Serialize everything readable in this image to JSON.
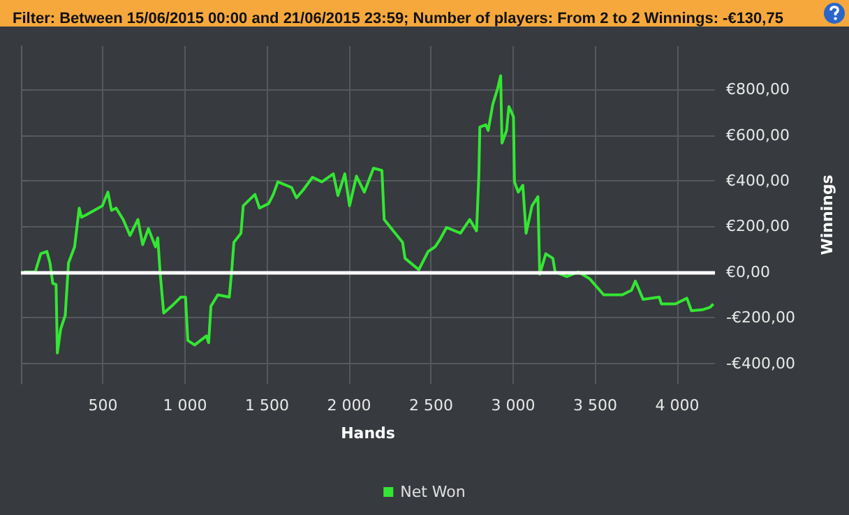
{
  "chart_data": {
    "type": "line",
    "title": "Filter: Between 15/06/2015 00:00 and 21/06/2015 23:59; Number of players: From 2 to 2 Winnings: -€130,75",
    "xlabel": "Hands",
    "ylabel": "Winnings",
    "x": [
      17,
      87,
      121,
      158,
      177,
      194,
      214,
      222,
      242,
      270,
      290,
      327,
      355,
      369,
      397,
      496,
      530,
      552,
      580,
      623,
      665,
      713,
      742,
      777,
      820,
      834,
      848,
      870,
      918,
      975,
      1003,
      1017,
      1059,
      1130,
      1144,
      1158,
      1200,
      1270,
      1284,
      1298,
      1341,
      1355,
      1426,
      1454,
      1510,
      1538,
      1566,
      1650,
      1679,
      1721,
      1777,
      1834,
      1904,
      1932,
      1974,
      2003,
      2045,
      2093,
      2149,
      2200,
      2214,
      2270,
      2326,
      2341,
      2425,
      2482,
      2524,
      2552,
      2594,
      2679,
      2735,
      2777,
      2791,
      2797,
      2833,
      2848,
      2876,
      2904,
      2924,
      2932,
      2960,
      2974,
      3002,
      3008,
      3031,
      3059,
      3079,
      3115,
      3151,
      3162,
      3199,
      3242,
      3256,
      3327,
      3397,
      3467,
      3552,
      3665,
      3721,
      3745,
      3792,
      3890,
      3904,
      3989,
      4059,
      4087,
      4157,
      4200,
      4220
    ],
    "series": [
      {
        "name": "Net Won",
        "color": "#33e633",
        "values": [
          0,
          0,
          80,
          90,
          40,
          -50,
          -55,
          -355,
          -250,
          -190,
          40,
          110,
          280,
          240,
          250,
          290,
          350,
          270,
          280,
          230,
          160,
          230,
          120,
          190,
          110,
          150,
          0,
          -180,
          -150,
          -110,
          -110,
          -300,
          -320,
          -280,
          -310,
          -150,
          -100,
          -110,
          0,
          130,
          170,
          290,
          340,
          280,
          300,
          340,
          395,
          370,
          325,
          360,
          415,
          395,
          430,
          335,
          430,
          290,
          420,
          350,
          455,
          445,
          230,
          180,
          130,
          60,
          10,
          90,
          110,
          140,
          195,
          170,
          230,
          180,
          425,
          635,
          645,
          620,
          735,
          800,
          860,
          565,
          620,
          725,
          680,
          395,
          350,
          380,
          170,
          290,
          330,
          -10,
          80,
          60,
          0,
          -20,
          0,
          -30,
          -100,
          -100,
          -80,
          -40,
          -120,
          -110,
          -140,
          -140,
          -115,
          -170,
          -165,
          -155,
          -140
        ]
      }
    ],
    "xlim": [
      0,
      4230
    ],
    "ylim": [
      -490,
      990
    ],
    "xticks": [
      500,
      {
        "value": 1000,
        "label": "1 000"
      },
      {
        "value": 1500,
        "label": "1 500"
      },
      {
        "value": 2000,
        "label": "2 000"
      },
      {
        "value": 2500,
        "label": "2 500"
      },
      {
        "value": 3000,
        "label": "3 000"
      },
      {
        "value": 3500,
        "label": "3 500"
      },
      {
        "value": 4000,
        "label": "4 000"
      }
    ],
    "yticks": [
      {
        "value": -400,
        "label": "-€400,00"
      },
      {
        "value": -200,
        "label": "-€200,00"
      },
      {
        "value": 0,
        "label": "€0,00"
      },
      {
        "value": 200,
        "label": "€200,00"
      },
      {
        "value": 400,
        "label": "€400,00"
      },
      {
        "value": 600,
        "label": "€600,00"
      },
      {
        "value": 800,
        "label": "€800,00"
      }
    ],
    "ref_lines": [
      {
        "axis": "y",
        "value": 0,
        "color": "#ffffff"
      }
    ],
    "grid": true,
    "legend": "bottom",
    "marker": "none",
    "line_style": "solid"
  }
}
